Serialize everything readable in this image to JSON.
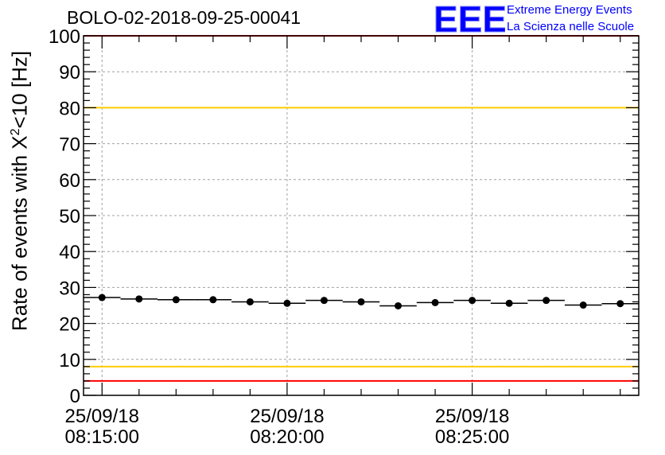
{
  "header": {
    "run_title": "BOLO-02-2018-09-25-00041"
  },
  "logo": {
    "mark": "EEE",
    "line1": "Extreme Energy Events",
    "line2": "La Scienza nelle Scuole",
    "color": "#0000ff"
  },
  "chart_data": {
    "type": "scatter",
    "title": "BOLO-02-2018-09-25-00041",
    "ylabel_prefix": "Rate of events with X",
    "ylabel_sup": "2",
    "ylabel_suffix": "<10 [Hz]",
    "xlabel": "",
    "ylim": [
      0,
      100
    ],
    "yticks": [
      0,
      10,
      20,
      30,
      40,
      50,
      60,
      70,
      80,
      90,
      100
    ],
    "xlim": [
      "2018-09-25 08:14:30",
      "2018-09-25 08:29:30"
    ],
    "xticks": [
      {
        "time": "2018-09-25 08:15:00",
        "date": "25/09/18",
        "clock": "08:15:00"
      },
      {
        "time": "2018-09-25 08:20:00",
        "date": "25/09/18",
        "clock": "08:20:00"
      },
      {
        "time": "2018-09-25 08:25:00",
        "date": "25/09/18",
        "clock": "08:25:00"
      }
    ],
    "grid": true,
    "series": [
      {
        "x": [
          "08:15:00",
          "08:16:00",
          "08:17:00",
          "08:18:00",
          "08:19:00",
          "08:20:00",
          "08:21:00",
          "08:22:00",
          "08:23:00",
          "08:24:00",
          "08:25:00",
          "08:26:00",
          "08:27:00",
          "08:28:00",
          "08:29:00"
        ],
        "y": [
          27.2,
          26.8,
          26.6,
          26.6,
          26.0,
          25.6,
          26.4,
          26.0,
          24.9,
          25.8,
          26.4,
          25.6,
          26.4,
          25.1,
          25.5
        ],
        "x_half_width_seconds": 30,
        "color": "#000000"
      }
    ],
    "reference_lines": [
      {
        "y": 80,
        "color": "#ffcc00"
      },
      {
        "y": 8,
        "color": "#ffcc00"
      },
      {
        "y": 100,
        "color": "#ff0000"
      },
      {
        "y": 4,
        "color": "#ff0000"
      }
    ]
  }
}
